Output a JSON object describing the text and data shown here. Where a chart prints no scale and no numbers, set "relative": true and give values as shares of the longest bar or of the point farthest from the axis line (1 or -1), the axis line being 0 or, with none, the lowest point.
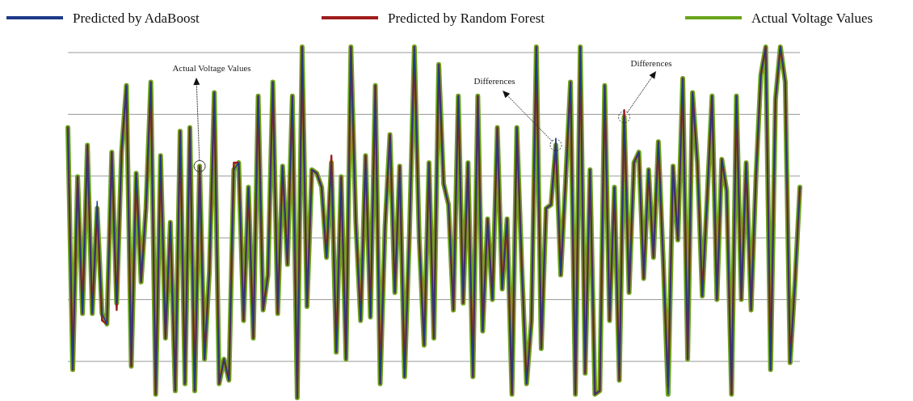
{
  "chart_data": {
    "type": "line",
    "relative": true,
    "grid": true,
    "legend": "top",
    "line_style": "solid",
    "marker": "none",
    "categories": [
      null,
      null,
      null,
      null,
      null,
      null,
      null,
      null,
      null,
      null,
      null,
      null,
      null,
      null,
      null,
      null,
      null,
      null,
      null,
      null,
      null,
      null,
      null,
      null,
      null,
      null,
      null,
      null,
      null,
      null,
      null,
      null,
      null,
      null,
      null,
      null,
      null,
      null,
      null,
      null,
      null,
      null,
      null,
      null,
      null,
      null,
      null,
      null,
      null,
      null,
      null,
      null,
      null,
      null,
      null,
      null,
      null,
      null,
      null,
      null,
      null,
      null,
      null,
      null,
      null,
      null,
      null,
      null,
      null,
      null,
      null,
      null,
      null,
      null,
      null,
      null,
      null,
      null,
      null,
      null,
      null,
      null,
      null,
      null,
      null,
      null,
      null,
      null,
      null,
      null,
      null,
      null,
      null,
      null,
      null,
      null,
      null,
      null,
      null,
      null,
      null,
      null,
      null,
      null,
      null,
      null,
      null,
      null,
      null,
      null,
      null,
      null,
      null,
      null,
      null,
      null,
      null,
      null,
      null,
      null,
      null,
      null,
      null,
      null,
      null,
      null,
      null,
      null,
      null,
      null,
      null,
      null,
      null,
      null,
      null,
      null,
      null,
      null,
      null,
      null,
      null,
      null,
      null,
      null,
      null,
      null,
      null,
      null,
      null,
      null,
      null
    ],
    "series": [
      {
        "name": "Predicted by AdaBoost",
        "color": "#1f3a8a",
        "values": [
          0.77,
          0.08,
          0.63,
          0.24,
          0.72,
          0.24,
          0.56,
          0.24,
          0.21,
          0.7,
          0.27,
          0.7,
          0.89,
          0.09,
          0.64,
          0.33,
          0.54,
          0.9,
          0.01,
          0.69,
          0.17,
          0.5,
          0.02,
          0.76,
          0.04,
          0.77,
          0.02,
          0.66,
          0.11,
          0.36,
          0.87,
          0.04,
          0.11,
          0.05,
          0.65,
          0.67,
          0.22,
          0.6,
          0.17,
          0.86,
          0.25,
          0.35,
          0.9,
          0.24,
          0.66,
          0.38,
          0.86,
          0.0,
          1.0,
          0.26,
          0.65,
          0.64,
          0.6,
          0.4,
          0.67,
          0.13,
          0.63,
          0.11,
          1.0,
          0.5,
          0.22,
          0.69,
          0.23,
          0.89,
          0.04,
          0.49,
          0.75,
          0.3,
          0.66,
          0.06,
          0.47,
          1.0,
          0.45,
          0.15,
          0.67,
          0.17,
          0.95,
          0.61,
          0.55,
          0.25,
          0.86,
          0.27,
          0.67,
          0.06,
          0.86,
          0.19,
          0.51,
          0.28,
          0.77,
          0.31,
          0.51,
          0.01,
          0.77,
          0.38,
          0.04,
          0.22,
          1.0,
          0.14,
          0.54,
          0.55,
          0.74,
          0.35,
          0.62,
          0.9,
          0.01,
          1.0,
          0.07,
          0.65,
          0.01,
          0.02,
          0.89,
          0.22,
          0.6,
          0.05,
          0.8,
          0.3,
          0.67,
          0.7,
          0.34,
          0.65,
          0.4,
          0.73,
          0.39,
          0.01,
          0.66,
          0.45,
          0.91,
          0.11,
          0.87,
          0.67,
          0.29,
          0.57,
          0.86,
          0.28,
          0.68,
          0.59,
          0.01,
          0.86,
          0.28,
          0.67,
          0.25,
          0.63,
          0.92,
          1.0,
          0.08,
          0.85,
          1.0,
          0.9,
          0.1,
          0.33,
          0.6
        ]
      },
      {
        "name": "Predicted by Random Forest",
        "color": "#a01c1c",
        "values": [
          0.77,
          0.08,
          0.63,
          0.24,
          0.72,
          0.24,
          0.54,
          0.22,
          0.21,
          0.7,
          0.25,
          0.7,
          0.89,
          0.09,
          0.64,
          0.33,
          0.54,
          0.9,
          0.01,
          0.69,
          0.17,
          0.5,
          0.02,
          0.76,
          0.04,
          0.77,
          0.02,
          0.66,
          0.11,
          0.36,
          0.87,
          0.04,
          0.11,
          0.05,
          0.67,
          0.67,
          0.22,
          0.6,
          0.17,
          0.86,
          0.25,
          0.35,
          0.9,
          0.24,
          0.66,
          0.38,
          0.86,
          0.0,
          1.0,
          0.26,
          0.65,
          0.64,
          0.6,
          0.4,
          0.69,
          0.13,
          0.63,
          0.11,
          1.0,
          0.5,
          0.22,
          0.69,
          0.23,
          0.89,
          0.04,
          0.49,
          0.75,
          0.3,
          0.66,
          0.06,
          0.47,
          1.0,
          0.45,
          0.15,
          0.67,
          0.17,
          0.95,
          0.61,
          0.55,
          0.25,
          0.86,
          0.27,
          0.67,
          0.06,
          0.86,
          0.19,
          0.51,
          0.28,
          0.77,
          0.31,
          0.51,
          0.01,
          0.77,
          0.38,
          0.04,
          0.22,
          1.0,
          0.14,
          0.54,
          0.55,
          0.72,
          0.35,
          0.62,
          0.9,
          0.01,
          1.0,
          0.07,
          0.65,
          0.01,
          0.02,
          0.89,
          0.22,
          0.6,
          0.05,
          0.82,
          0.3,
          0.67,
          0.7,
          0.34,
          0.65,
          0.4,
          0.73,
          0.39,
          0.03,
          0.66,
          0.45,
          0.91,
          0.11,
          0.87,
          0.67,
          0.29,
          0.57,
          0.86,
          0.28,
          0.68,
          0.59,
          0.01,
          0.86,
          0.28,
          0.67,
          0.25,
          0.63,
          0.92,
          1.0,
          0.08,
          0.85,
          1.0,
          0.9,
          0.1,
          0.33,
          0.6
        ]
      },
      {
        "name": "Actual Voltage Values",
        "color": "#6aa51c",
        "values": [
          0.77,
          0.08,
          0.63,
          0.24,
          0.72,
          0.24,
          0.54,
          0.24,
          0.21,
          0.7,
          0.27,
          0.7,
          0.89,
          0.09,
          0.64,
          0.33,
          0.54,
          0.9,
          0.01,
          0.69,
          0.17,
          0.5,
          0.02,
          0.76,
          0.04,
          0.77,
          0.02,
          0.66,
          0.11,
          0.36,
          0.87,
          0.04,
          0.11,
          0.05,
          0.65,
          0.67,
          0.22,
          0.6,
          0.17,
          0.86,
          0.25,
          0.35,
          0.9,
          0.24,
          0.66,
          0.38,
          0.86,
          0.0,
          1.0,
          0.26,
          0.65,
          0.64,
          0.6,
          0.4,
          0.67,
          0.13,
          0.63,
          0.11,
          1.0,
          0.5,
          0.22,
          0.69,
          0.23,
          0.89,
          0.04,
          0.49,
          0.75,
          0.3,
          0.66,
          0.06,
          0.47,
          1.0,
          0.45,
          0.15,
          0.67,
          0.17,
          0.95,
          0.61,
          0.55,
          0.25,
          0.86,
          0.27,
          0.67,
          0.06,
          0.86,
          0.19,
          0.51,
          0.28,
          0.77,
          0.31,
          0.51,
          0.01,
          0.77,
          0.38,
          0.04,
          0.22,
          1.0,
          0.14,
          0.54,
          0.55,
          0.72,
          0.35,
          0.62,
          0.9,
          0.01,
          1.0,
          0.07,
          0.65,
          0.01,
          0.02,
          0.89,
          0.22,
          0.6,
          0.05,
          0.8,
          0.3,
          0.67,
          0.7,
          0.34,
          0.65,
          0.4,
          0.73,
          0.39,
          0.01,
          0.66,
          0.45,
          0.91,
          0.11,
          0.87,
          0.67,
          0.29,
          0.57,
          0.86,
          0.28,
          0.68,
          0.59,
          0.01,
          0.86,
          0.28,
          0.67,
          0.25,
          0.63,
          0.92,
          1.0,
          0.08,
          0.85,
          1.0,
          0.9,
          0.1,
          0.33,
          0.6
        ]
      }
    ],
    "annotations": [
      "Actual Voltage Values",
      "Differences",
      "Differences"
    ]
  }
}
